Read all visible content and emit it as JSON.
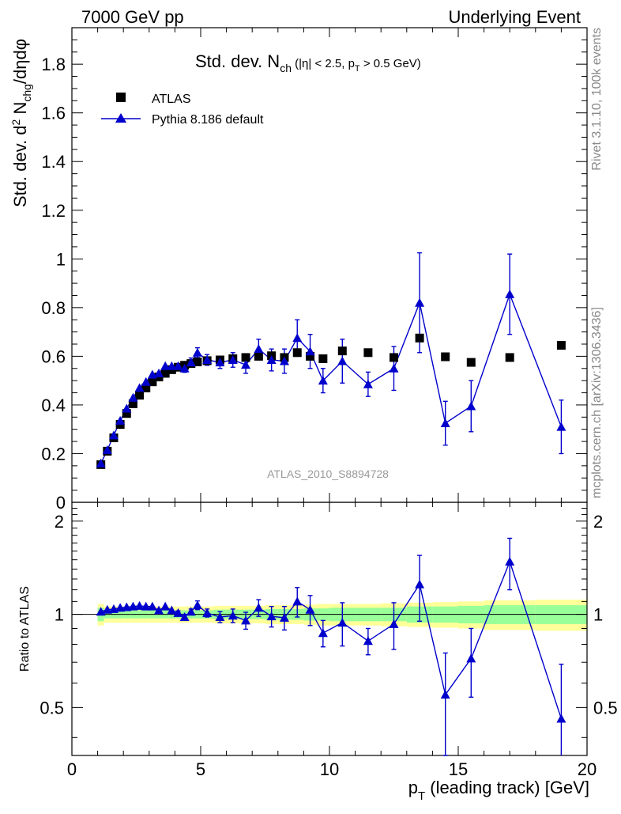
{
  "header": {
    "left": "7000 GeV pp",
    "right": "Underlying Event"
  },
  "side_labels": {
    "rivet": "Rivet 3.1.10,  100k events",
    "mcplots": "mcplots.cern.ch [arXiv:1306.3436]"
  },
  "plot_title": {
    "main": "Std. dev. N",
    "sub": "ch",
    "rest1": " (|η| < 2.5, p",
    "sub2": "T",
    "rest2": " > 0.5 GeV)"
  },
  "main_ylabel": {
    "p1": "Std. dev. d",
    "sup": "2",
    "p2": " N",
    "sub": "chg",
    "p3": "/dηdφ"
  },
  "analysis_label": "ATLAS_2010_S8894728",
  "ratio_ylabel": "Ratio to ATLAS",
  "xlabel": {
    "p1": "p",
    "sub": "T",
    "p2": " (leading track) [GeV]"
  },
  "colors": {
    "data": "#000000",
    "mc": "#0000cc",
    "band_inner": "#99ff99",
    "band_outer": "#ffff99"
  },
  "chart_data": [
    {
      "type": "scatter",
      "panel": "main",
      "xlim": [
        0,
        20
      ],
      "ylim": [
        0,
        1.95
      ],
      "x_ticks": [
        0,
        5,
        10,
        15,
        20
      ],
      "y_ticks": [
        0,
        0.2,
        0.4,
        0.6,
        0.8,
        1,
        1.2,
        1.4,
        1.6,
        1.8
      ],
      "y_tick_labels": [
        "0",
        "0.2",
        "0.4",
        "0.6",
        "0.8",
        "1",
        "1.2",
        "1.4",
        "1.6",
        "1.8"
      ],
      "legend_position": "top-left",
      "series": [
        {
          "name": "ATLAS",
          "marker": "square",
          "x": [
            1.125,
            1.375,
            1.625,
            1.875,
            2.125,
            2.375,
            2.625,
            2.875,
            3.125,
            3.375,
            3.625,
            3.875,
            4.125,
            4.375,
            4.625,
            4.875,
            5.25,
            5.75,
            6.25,
            6.75,
            7.25,
            7.75,
            8.25,
            8.75,
            9.25,
            9.75,
            10.5,
            11.5,
            12.5,
            13.5,
            14.5,
            15.5,
            17.0,
            19.0
          ],
          "y": [
            0.155,
            0.21,
            0.265,
            0.32,
            0.365,
            0.405,
            0.44,
            0.47,
            0.495,
            0.515,
            0.53,
            0.545,
            0.555,
            0.563,
            0.57,
            0.577,
            0.582,
            0.585,
            0.59,
            0.595,
            0.6,
            0.602,
            0.595,
            0.615,
            0.6,
            0.59,
            0.622,
            0.615,
            0.595,
            0.675,
            0.598,
            0.575,
            0.595,
            0.645
          ]
        },
        {
          "name": "Pythia 8.186 default",
          "marker": "triangle",
          "x": [
            1.125,
            1.375,
            1.625,
            1.875,
            2.125,
            2.375,
            2.625,
            2.875,
            3.125,
            3.375,
            3.625,
            3.875,
            4.125,
            4.375,
            4.625,
            4.875,
            5.25,
            5.75,
            6.25,
            6.75,
            7.25,
            7.75,
            8.25,
            8.75,
            9.25,
            9.75,
            10.5,
            11.5,
            12.5,
            13.5,
            14.5,
            15.5,
            17.0,
            19.0
          ],
          "y": [
            0.16,
            0.215,
            0.275,
            0.335,
            0.385,
            0.43,
            0.47,
            0.495,
            0.525,
            0.53,
            0.56,
            0.56,
            0.56,
            0.55,
            0.575,
            0.615,
            0.585,
            0.575,
            0.585,
            0.565,
            0.63,
            0.585,
            0.58,
            0.675,
            0.62,
            0.5,
            0.58,
            0.485,
            0.55,
            0.82,
            0.325,
            0.395,
            0.855,
            0.31
          ],
          "yerr": [
            0.005,
            0.005,
            0.006,
            0.007,
            0.008,
            0.008,
            0.009,
            0.01,
            0.01,
            0.012,
            0.012,
            0.013,
            0.014,
            0.016,
            0.018,
            0.02,
            0.022,
            0.025,
            0.03,
            0.035,
            0.04,
            0.045,
            0.05,
            0.075,
            0.07,
            0.05,
            0.09,
            0.05,
            0.09,
            0.205,
            0.09,
            0.105,
            0.165,
            0.11
          ]
        }
      ]
    },
    {
      "type": "scatter",
      "panel": "ratio",
      "xlim": [
        0,
        20
      ],
      "ylim": [
        0.35,
        2.3
      ],
      "y_ticks": [
        0.5,
        1,
        2
      ],
      "y_tick_labels": [
        "0.5",
        "1",
        "2"
      ],
      "x_ticks": [
        0,
        5,
        10,
        15,
        20
      ],
      "x_tick_labels": [
        "0",
        "5",
        "10",
        "15",
        "20"
      ],
      "bands": {
        "x_edges": [
          1.0,
          1.25,
          1.5,
          1.75,
          2.0,
          2.25,
          2.5,
          2.75,
          3.0,
          3.25,
          3.5,
          3.75,
          4.0,
          4.25,
          4.5,
          4.75,
          5.0,
          5.5,
          6.0,
          6.5,
          7.0,
          7.5,
          8.0,
          8.5,
          9.0,
          9.5,
          10.0,
          11.0,
          12.0,
          13.0,
          14.0,
          15.0,
          16.0,
          18.0,
          20.0
        ],
        "inner_half_width": [
          0.05,
          0.03,
          0.03,
          0.03,
          0.03,
          0.03,
          0.03,
          0.03,
          0.03,
          0.03,
          0.03,
          0.03,
          0.03,
          0.03,
          0.03,
          0.03,
          0.03,
          0.035,
          0.035,
          0.035,
          0.035,
          0.04,
          0.04,
          0.04,
          0.045,
          0.045,
          0.05,
          0.05,
          0.05,
          0.06,
          0.06,
          0.065,
          0.07,
          0.07
        ],
        "outer_half_width": [
          0.08,
          0.06,
          0.06,
          0.06,
          0.06,
          0.06,
          0.06,
          0.06,
          0.06,
          0.06,
          0.06,
          0.06,
          0.06,
          0.06,
          0.06,
          0.06,
          0.06,
          0.065,
          0.065,
          0.065,
          0.065,
          0.07,
          0.07,
          0.07,
          0.075,
          0.08,
          0.08,
          0.08,
          0.085,
          0.09,
          0.095,
          0.1,
          0.11,
          0.115
        ]
      },
      "series": [
        {
          "name": "Pythia 8.186 default",
          "marker": "triangle",
          "x": [
            1.125,
            1.375,
            1.625,
            1.875,
            2.125,
            2.375,
            2.625,
            2.875,
            3.125,
            3.375,
            3.625,
            3.875,
            4.125,
            4.375,
            4.625,
            4.875,
            5.25,
            5.75,
            6.25,
            6.75,
            7.25,
            7.75,
            8.25,
            8.75,
            9.25,
            9.75,
            10.5,
            11.5,
            12.5,
            13.5,
            14.5,
            15.5,
            17.0,
            19.0
          ],
          "y": [
            1.02,
            1.035,
            1.04,
            1.05,
            1.055,
            1.06,
            1.065,
            1.06,
            1.06,
            1.03,
            1.06,
            1.03,
            1.01,
            0.98,
            1.02,
            1.07,
            1.01,
            0.98,
            0.99,
            0.955,
            1.05,
            0.985,
            0.975,
            1.1,
            1.035,
            0.87,
            0.94,
            0.82,
            0.93,
            1.25,
            0.55,
            0.72,
            1.48,
            0.46
          ],
          "yerr": [
            0.01,
            0.01,
            0.01,
            0.01,
            0.01,
            0.01,
            0.01,
            0.012,
            0.012,
            0.014,
            0.014,
            0.015,
            0.016,
            0.02,
            0.02,
            0.035,
            0.03,
            0.04,
            0.05,
            0.06,
            0.065,
            0.075,
            0.085,
            0.12,
            0.115,
            0.085,
            0.15,
            0.08,
            0.16,
            0.3,
            0.2,
            0.18,
            0.28,
            0.23
          ]
        }
      ]
    }
  ]
}
